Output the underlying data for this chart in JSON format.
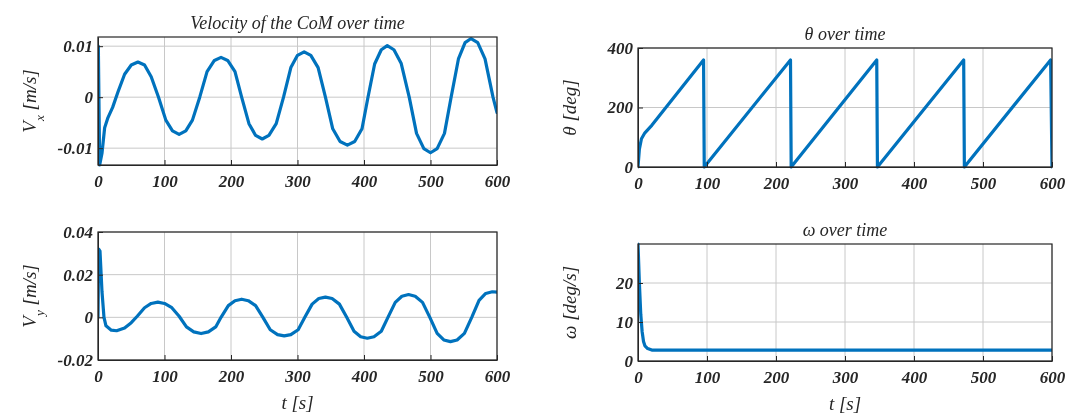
{
  "chart_data": [
    {
      "type": "line",
      "title": "Velocity of the CoM over time",
      "ylabel": "V$_{x}$ [m/s]",
      "xlim": [
        0,
        600
      ],
      "xticks": [
        0,
        100,
        200,
        300,
        400,
        500,
        600
      ],
      "ylim": [
        -0.0133,
        0.0118
      ],
      "yticks": [
        -0.01,
        0,
        0.01
      ],
      "grid": true,
      "line_style": "solid",
      "marker": "none",
      "series": [
        {
          "color": "#0072bd",
          "x": [
            0,
            0.5,
            2.5,
            6,
            10,
            15,
            22,
            30,
            40,
            50,
            60,
            70,
            80,
            91,
            102,
            112,
            122,
            132,
            142,
            153,
            164,
            175,
            185,
            195,
            206,
            216,
            227,
            237,
            247,
            257,
            268,
            279,
            290,
            300,
            310,
            320,
            331,
            342,
            353,
            364,
            375,
            386,
            397,
            406,
            416,
            426,
            435,
            445,
            456,
            468,
            479,
            490,
            500,
            510,
            521,
            531,
            542,
            552,
            561,
            571,
            582,
            594,
            600
          ],
          "values": [
            0,
            0.01,
            -0.0133,
            -0.011,
            -0.006,
            -0.004,
            -0.002,
            0.001,
            0.0045,
            0.0063,
            0.0069,
            0.0063,
            0.004,
            0,
            -0.0045,
            -0.0066,
            -0.0073,
            -0.0066,
            -0.0045,
            0,
            0.005,
            0.0072,
            0.0078,
            0.0072,
            0.005,
            0,
            -0.0052,
            -0.0075,
            -0.0082,
            -0.0075,
            -0.0052,
            0,
            0.0058,
            0.0082,
            0.0089,
            0.0082,
            0.0058,
            0,
            -0.0062,
            -0.0087,
            -0.0094,
            -0.0087,
            -0.0062,
            0,
            0.0065,
            0.0093,
            0.0101,
            0.0093,
            0.0066,
            0,
            -0.0071,
            -0.0101,
            -0.0109,
            -0.0101,
            -0.0071,
            0,
            0.0075,
            0.0107,
            0.0115,
            0.0107,
            0.0075,
            0,
            -0.003
          ]
        }
      ]
    },
    {
      "type": "line",
      "title": "θ over time",
      "ylabel": "θ [deg]",
      "xlim": [
        0,
        600
      ],
      "xticks": [
        0,
        100,
        200,
        300,
        400,
        500,
        600
      ],
      "ylim": [
        0,
        400
      ],
      "yticks": [
        0,
        200,
        400
      ],
      "grid": true,
      "line_style": "solid",
      "marker": "none",
      "series": [
        {
          "color": "#0072bd",
          "x": [
            0,
            2,
            5,
            10,
            20,
            95,
            96,
            221,
            222,
            346,
            347,
            472,
            473,
            598,
            600
          ],
          "values": [
            0,
            60,
            95,
            115,
            140,
            360,
            0,
            360,
            0,
            360,
            0,
            360,
            0,
            360,
            0
          ]
        }
      ]
    },
    {
      "type": "line",
      "xlabel": "t [s]",
      "ylabel": "V$_{y}$ [m/s]",
      "xlim": [
        0,
        600
      ],
      "xticks": [
        0,
        100,
        200,
        300,
        400,
        500,
        600
      ],
      "ylim": [
        -0.02,
        0.04
      ],
      "yticks": [
        -0.02,
        0,
        0.02,
        0.04
      ],
      "grid": true,
      "line_style": "solid",
      "marker": "none",
      "series": [
        {
          "color": "#0072bd",
          "x": [
            0,
            1,
            3,
            6,
            9,
            12,
            20,
            28,
            40,
            50,
            59,
            70,
            80,
            90,
            100,
            111,
            122,
            133,
            144,
            155,
            166,
            177,
            185,
            196,
            206,
            216,
            226,
            237,
            248,
            259,
            270,
            280,
            290,
            301,
            311,
            322,
            332,
            342,
            352,
            363,
            374,
            385,
            395,
            405,
            415,
            426,
            436,
            447,
            457,
            467,
            477,
            488,
            499,
            510,
            520,
            530,
            540,
            551,
            562,
            573,
            583,
            593,
            600
          ],
          "values": [
            0,
            0.032,
            0.031,
            0.012,
            0,
            -0.004,
            -0.006,
            -0.0063,
            -0.005,
            -0.0025,
            0.0005,
            0.0045,
            0.0065,
            0.0071,
            0.0065,
            0.0045,
            0.0005,
            -0.0045,
            -0.0068,
            -0.0076,
            -0.0068,
            -0.0045,
            0,
            0.0055,
            0.0078,
            0.0085,
            0.0078,
            0.0055,
            0,
            -0.0058,
            -0.0081,
            -0.0087,
            -0.0081,
            -0.0058,
            0,
            0.0062,
            0.0088,
            0.0095,
            0.0088,
            0.0062,
            0,
            -0.0065,
            -0.0091,
            -0.0098,
            -0.0091,
            -0.0065,
            0,
            0.007,
            0.0099,
            0.0107,
            0.0099,
            0.007,
            0,
            -0.0075,
            -0.0106,
            -0.0114,
            -0.0106,
            -0.0075,
            0,
            0.008,
            0.0112,
            0.012,
            0.0118
          ]
        }
      ]
    },
    {
      "type": "line",
      "title": "ω over time",
      "xlabel": "t [s]",
      "ylabel": "ω [deg/s]",
      "xlim": [
        0,
        600
      ],
      "xticks": [
        0,
        100,
        200,
        300,
        400,
        500,
        600
      ],
      "ylim": [
        0,
        30
      ],
      "yticks": [
        0,
        10,
        20
      ],
      "grid": true,
      "line_style": "solid",
      "marker": "none",
      "series": [
        {
          "color": "#0072bd",
          "x": [
            0,
            2,
            4,
            6,
            8,
            10,
            14,
            20,
            600
          ],
          "values": [
            30,
            20,
            12,
            7.5,
            5,
            3.9,
            3.2,
            2.8,
            2.8
          ]
        }
      ]
    }
  ]
}
